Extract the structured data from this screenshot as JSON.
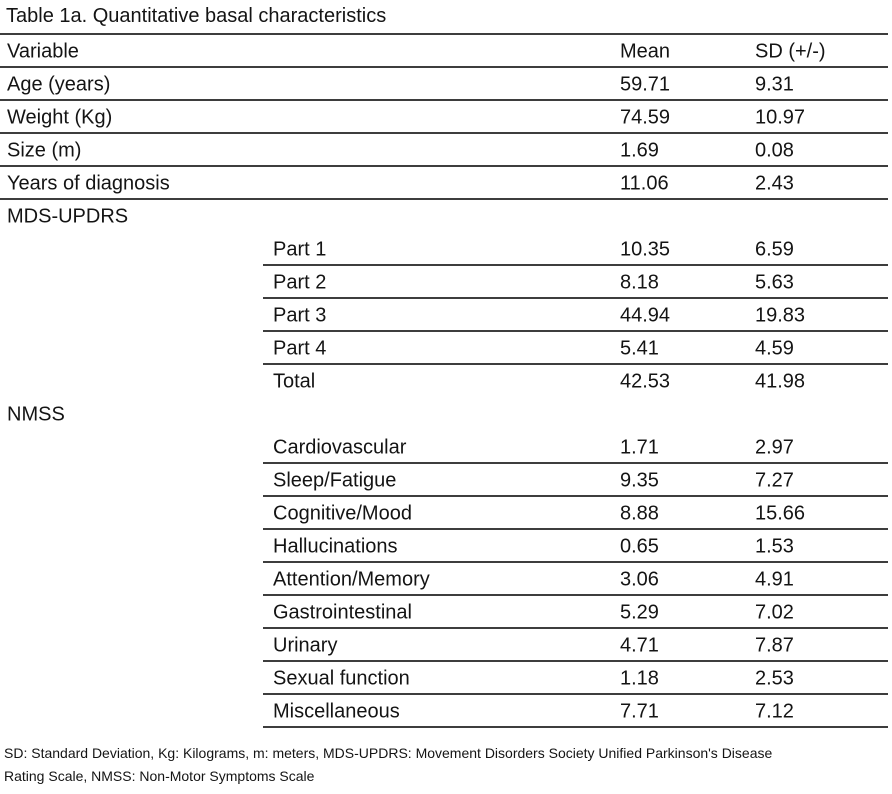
{
  "page": {
    "title": "Table 1a. Quantitative basal characteristics",
    "footnote_line1": "SD: Standard Deviation, Kg: Kilograms, m: meters, MDS-UPDRS: Movement Disorders Society Unified Parkinson's Disease",
    "footnote_line2": "Rating Scale, NMSS: Non-Motor Symptoms Scale"
  },
  "colors": {
    "background": "#ffffff",
    "text": "#141414",
    "rule": "#3d3d3d"
  },
  "table": {
    "columns": [
      "Variable",
      "Mean",
      "SD (+/-)"
    ],
    "rows": [
      {
        "label": "Age (years)",
        "indent": false,
        "mean": "59.71",
        "sd": "9.31",
        "rule": "full"
      },
      {
        "label": "Weight (Kg)",
        "indent": false,
        "mean": "74.59",
        "sd": "10.97",
        "rule": "full"
      },
      {
        "label": "Size (m)",
        "indent": false,
        "mean": "1.69",
        "sd": "0.08",
        "rule": "full"
      },
      {
        "label": "Years of diagnosis",
        "indent": false,
        "mean": "11.06",
        "sd": "2.43",
        "rule": "full"
      },
      {
        "label": "MDS-UPDRS",
        "indent": false,
        "mean": "",
        "sd": "",
        "rule": "none"
      },
      {
        "label": "Part 1",
        "indent": true,
        "mean": "10.35",
        "sd": "6.59",
        "rule": "indent"
      },
      {
        "label": "Part 2",
        "indent": true,
        "mean": "8.18",
        "sd": "5.63",
        "rule": "indent"
      },
      {
        "label": "Part 3",
        "indent": true,
        "mean": "44.94",
        "sd": "19.83",
        "rule": "indent"
      },
      {
        "label": "Part 4",
        "indent": true,
        "mean": "5.41",
        "sd": "4.59",
        "rule": "indent"
      },
      {
        "label": "Total",
        "indent": true,
        "mean": "42.53",
        "sd": "41.98",
        "rule": "none"
      },
      {
        "label": "NMSS",
        "indent": false,
        "mean": "",
        "sd": "",
        "rule": "none"
      },
      {
        "label": "Cardiovascular",
        "indent": true,
        "mean": "1.71",
        "sd": "2.97",
        "rule": "indent"
      },
      {
        "label": "Sleep/Fatigue",
        "indent": true,
        "mean": "9.35",
        "sd": "7.27",
        "rule": "indent"
      },
      {
        "label": "Cognitive/Mood",
        "indent": true,
        "mean": "8.88",
        "sd": "15.66",
        "rule": "indent"
      },
      {
        "label": "Hallucinations",
        "indent": true,
        "mean": "0.65",
        "sd": "1.53",
        "rule": "indent"
      },
      {
        "label": "Attention/Memory",
        "indent": true,
        "mean": "3.06",
        "sd": "4.91",
        "rule": "indent"
      },
      {
        "label": "Gastrointestinal",
        "indent": true,
        "mean": "5.29",
        "sd": "7.02",
        "rule": "indent"
      },
      {
        "label": "Urinary",
        "indent": true,
        "mean": "4.71",
        "sd": "7.87",
        "rule": "indent"
      },
      {
        "label": "Sexual function",
        "indent": true,
        "mean": "1.18",
        "sd": "2.53",
        "rule": "indent"
      },
      {
        "label": "Miscellaneous",
        "indent": true,
        "mean": "7.71",
        "sd": "7.12",
        "rule": "indent"
      }
    ]
  }
}
